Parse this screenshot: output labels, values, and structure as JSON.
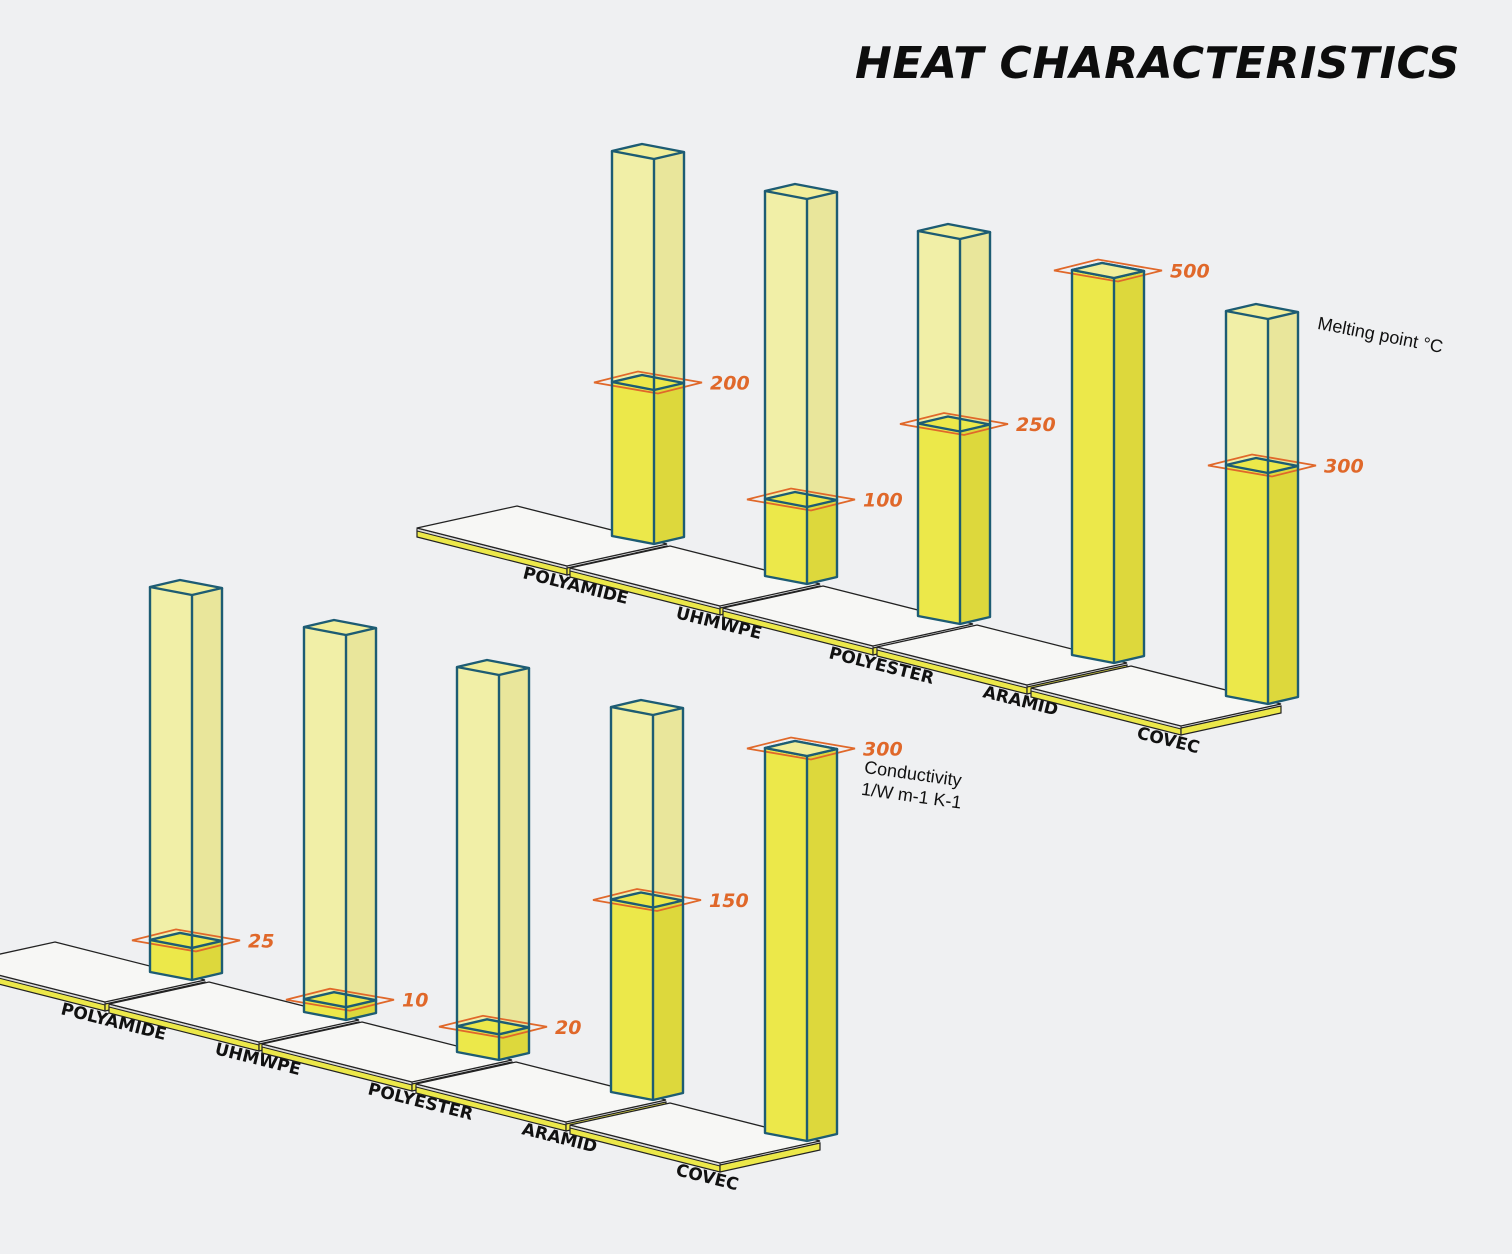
{
  "title": "HEAT CHARACTERISTICS",
  "colors": {
    "background": "#eff0f2",
    "bar_outline": "#1d5c73",
    "bar_ghost": "#f1ee9a",
    "bar_fill": "#ece84a",
    "value_label": "#e0682a",
    "base_top": "#f7f7f5",
    "base_edge": "#222222",
    "base_stripe": "#ece84a"
  },
  "chart_data": [
    {
      "type": "bar",
      "style": "isometric-3d",
      "unit_label": "Melting point °C",
      "categories": [
        "POLYAMIDE",
        "UHMWPE",
        "POLYESTER",
        "ARAMID",
        "COVEC"
      ],
      "values": [
        200,
        100,
        250,
        500,
        300
      ],
      "value_labels": [
        "200",
        "100",
        "250",
        "500",
        "300"
      ],
      "ylim": [
        0,
        500
      ]
    },
    {
      "type": "bar",
      "style": "isometric-3d",
      "unit_label": "Conductivity\n1/W m-1 K-1",
      "categories": [
        "POLYAMIDE",
        "UHMWPE",
        "POLYESTER",
        "ARAMID",
        "COVEC"
      ],
      "values": [
        25,
        10,
        20,
        150,
        300
      ],
      "value_labels": [
        "25",
        "10",
        "20",
        "150",
        "300"
      ],
      "ylim": [
        0,
        300
      ]
    }
  ]
}
